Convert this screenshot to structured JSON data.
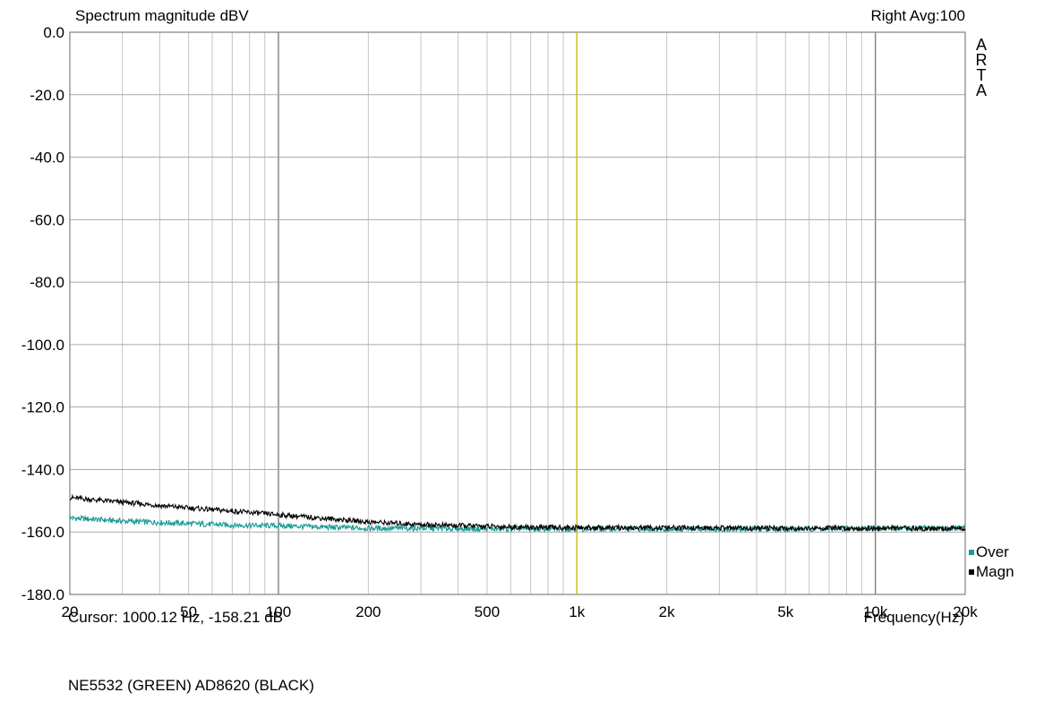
{
  "chart_data": {
    "type": "line",
    "title": "Spectrum magnitude dBV",
    "channel_info": "Right  Avg:100",
    "brand": [
      "A",
      "R",
      "T",
      "A"
    ],
    "xlabel": "Frequency(Hz)",
    "xscale": "log",
    "xlim": [
      20,
      20000
    ],
    "ylim": [
      -180,
      0
    ],
    "y_ticks": [
      0,
      -20,
      -40,
      -60,
      -80,
      -100,
      -120,
      -140,
      -160,
      -180
    ],
    "y_tick_labels": [
      "0.0",
      "-20.0",
      "-40.0",
      "-60.0",
      "-80.0",
      "-100.0",
      "-120.0",
      "-140.0",
      "-160.0",
      "-180.0"
    ],
    "x_ticks": [
      20,
      50,
      100,
      200,
      500,
      1000,
      2000,
      5000,
      10000,
      20000
    ],
    "x_tick_labels": [
      "20",
      "50",
      "100",
      "200",
      "500",
      "1k",
      "2k",
      "5k",
      "10k",
      "20k"
    ],
    "grid": true,
    "cursor": {
      "x": 1000,
      "color": "#d4c21a"
    },
    "cursor_text": "Cursor: 1000.12 Hz, -158.21 dB",
    "legend_position": "right",
    "series": [
      {
        "name": "Over",
        "color": "#1a9a94",
        "x": [
          20,
          30,
          50,
          70,
          100,
          150,
          200,
          300,
          500,
          700,
          1000,
          2000,
          5000,
          10000,
          20000
        ],
        "y": [
          -155.5,
          -156.5,
          -157.3,
          -157.8,
          -158.0,
          -158.5,
          -158.8,
          -158.8,
          -159.0,
          -159.0,
          -159.0,
          -159.0,
          -159.0,
          -158.8,
          -158.8
        ]
      },
      {
        "name": "Magn",
        "color": "#000000",
        "x": [
          20,
          30,
          50,
          70,
          100,
          150,
          200,
          300,
          500,
          700,
          1000,
          2000,
          5000,
          10000,
          20000
        ],
        "y": [
          -149.0,
          -150.5,
          -152.3,
          -153.3,
          -154.5,
          -155.8,
          -156.8,
          -157.6,
          -158.2,
          -158.5,
          -158.6,
          -158.7,
          -158.8,
          -158.8,
          -158.9
        ]
      }
    ]
  },
  "footer_note": "NE5532 (GREEN) AD8620 (BLACK)",
  "colors": {
    "grid": "#a9a9a9",
    "frame": "#808080",
    "cursor": "#d4c21a"
  }
}
